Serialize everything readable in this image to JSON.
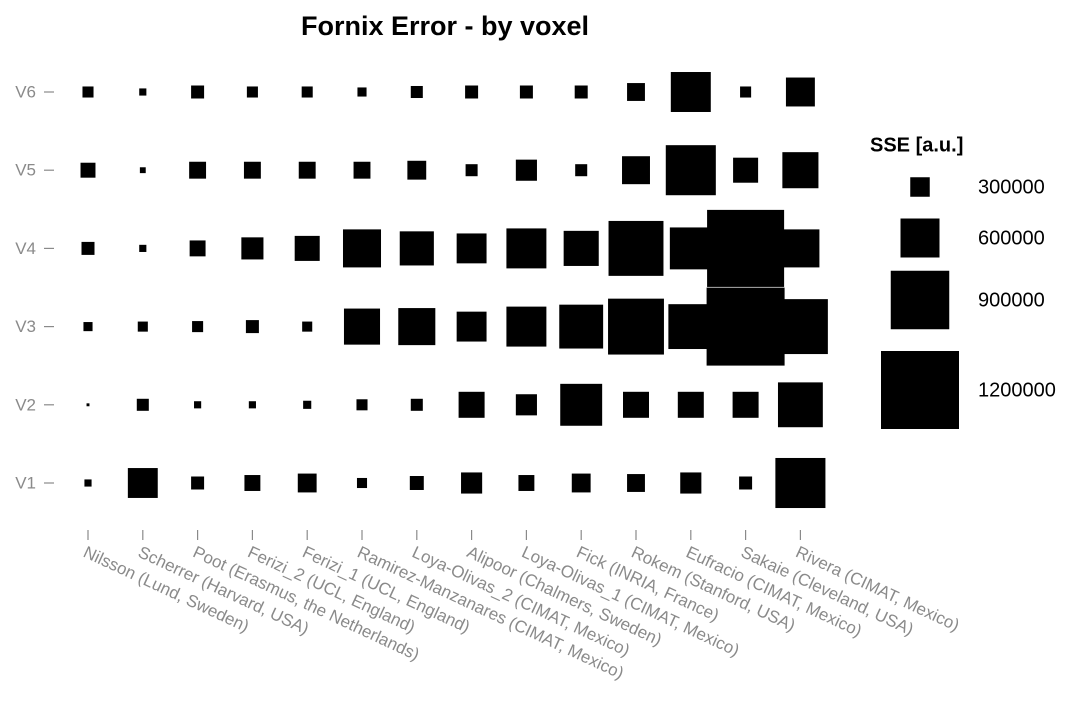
{
  "chart_data": {
    "type": "size-matrix",
    "title": "Fornix Error - by voxel",
    "categories": [
      "Nilsson (Lund, Sweden)",
      "Scherrer (Harvard, USA)",
      "Poot (Erasmus, the Netherlands)",
      "Ferizi_2 (UCL, England)",
      "Ferizi_1 (UCL, England)",
      "Ramirez-Manzanares (CIMAT, Mexico)",
      "Loya-Olivas_2 (CIMAT, Mexico)",
      "Alipoor (Chalmers, Sweden)",
      "Loya-Olivas_1 (CIMAT, Mexico)",
      "Fick (INRIA, France)",
      "Rokem (Stanford, USA)",
      "Eufracio (CIMAT, Mexico)",
      "Sakaie (Cleveland, USA)",
      "Rivera (CIMAT, Mexico)"
    ],
    "rows": [
      "V1",
      "V2",
      "V3",
      "V4",
      "V5",
      "V6"
    ],
    "values": [
      [
        110000,
        460000,
        200000,
        245000,
        290000,
        155000,
        215000,
        325000,
        245000,
        290000,
        275000,
        325000,
        200000,
        770000
      ],
      [
        45000,
        185000,
        110000,
        110000,
        125000,
        170000,
        185000,
        400000,
        325000,
        645000,
        400000,
        400000,
        400000,
        690000
      ],
      [
        140000,
        155000,
        170000,
        200000,
        155000,
        555000,
        570000,
        460000,
        615000,
        675000,
        860000,
        690000,
        1200000,
        845000
      ],
      [
        200000,
        110000,
        245000,
        340000,
        385000,
        585000,
        525000,
        460000,
        615000,
        540000,
        845000,
        645000,
        1185000,
        585000
      ],
      [
        230000,
        90000,
        260000,
        260000,
        260000,
        260000,
        290000,
        185000,
        325000,
        185000,
        430000,
        770000,
        385000,
        555000
      ],
      [
        170000,
        110000,
        200000,
        170000,
        170000,
        140000,
        185000,
        200000,
        200000,
        200000,
        275000,
        615000,
        170000,
        445000
      ]
    ],
    "color": "#000000",
    "legend_title": "SSE [a.u.]",
    "size_legend": [
      300000,
      600000,
      900000,
      1200000
    ],
    "legend": "right"
  }
}
